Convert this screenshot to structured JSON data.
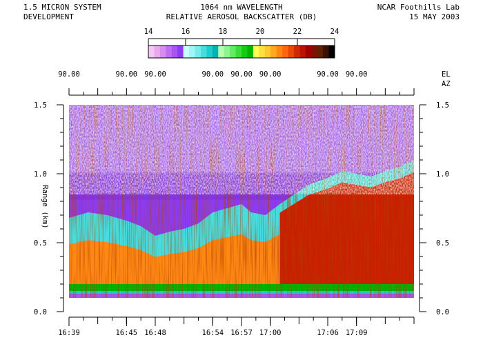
{
  "header": {
    "left_line1": "1.5 MICRON SYSTEM",
    "left_line2": "DEVELOPMENT",
    "center_line1": "1064 nm WAVELENGTH",
    "center_line2": "RELATIVE AEROSOL BACKSCATTER (DB)",
    "right_line1": "NCAR Foothills Lab",
    "right_line2": "15 MAY 2003"
  },
  "colors": {
    "bar": [
      "#f5c6f5",
      "#e8a8f0",
      "#d68cf0",
      "#bf6ef0",
      "#a855f0",
      "#8c3cf0",
      "#c8ffff",
      "#a0f5f5",
      "#78ebeb",
      "#48dcdc",
      "#20cccc",
      "#00b4b4",
      "#b4ffb4",
      "#8cf58c",
      "#64eb64",
      "#3cdc3c",
      "#14cc14",
      "#00b400",
      "#ffff50",
      "#ffe040",
      "#ffc830",
      "#ffa820",
      "#ff8814",
      "#ff6810",
      "#e84808",
      "#d02800",
      "#b81400",
      "#a00000",
      "#801000",
      "#602000",
      "#3a1000",
      "#000000"
    ]
  },
  "chart_data": {
    "type": "heatmap",
    "title": "RELATIVE AEROSOL BACKSCATTER (DB)",
    "ylabel": "Range (km)",
    "ylim": [
      0,
      1.5
    ],
    "y_ticks": [
      "0.0",
      "0.5",
      "1.0",
      "1.5"
    ],
    "colorbar": {
      "range": [
        14,
        24
      ],
      "ticks": [
        "14",
        "16",
        "18",
        "20",
        "22",
        "24"
      ]
    },
    "time_axis": {
      "range_minutes": [
        0,
        36
      ],
      "ticks": [
        {
          "label": "16:39",
          "minute": 0
        },
        {
          "label": "16:45",
          "minute": 6
        },
        {
          "label": "16:48",
          "minute": 9
        },
        {
          "label": "16:54",
          "minute": 15
        },
        {
          "label": "16:57",
          "minute": 18
        },
        {
          "label": "17:00",
          "minute": 21
        },
        {
          "label": "17:06",
          "minute": 27
        },
        {
          "label": "17:09",
          "minute": 30
        }
      ]
    },
    "elevation_axis": {
      "label_top": "EL",
      "label_bottom": "AZ",
      "ticks": [
        {
          "label": "90.00",
          "minute": 0
        },
        {
          "label": "90.00",
          "minute": 6
        },
        {
          "label": "90.00",
          "minute": 9
        },
        {
          "label": "90.00",
          "minute": 15
        },
        {
          "label": "90.00",
          "minute": 18
        },
        {
          "label": "90.00",
          "minute": 21
        },
        {
          "label": "90.00",
          "minute": 27
        },
        {
          "label": "90.00",
          "minute": 30
        }
      ]
    },
    "boundary_layer_top_km": [
      [
        0,
        0.68
      ],
      [
        2,
        0.72
      ],
      [
        4,
        0.7
      ],
      [
        6,
        0.66
      ],
      [
        7.5,
        0.62
      ],
      [
        9,
        0.55
      ],
      [
        10.5,
        0.58
      ],
      [
        12,
        0.6
      ],
      [
        13.5,
        0.64
      ],
      [
        15,
        0.72
      ],
      [
        16.5,
        0.75
      ],
      [
        18,
        0.78
      ],
      [
        19,
        0.72
      ],
      [
        20.5,
        0.7
      ],
      [
        22,
        0.78
      ],
      [
        23.5,
        0.85
      ],
      [
        25,
        0.92
      ],
      [
        27,
        0.97
      ],
      [
        28.5,
        1.02
      ],
      [
        30,
        1.0
      ],
      [
        31.5,
        0.98
      ],
      [
        33,
        1.02
      ],
      [
        34.5,
        1.05
      ],
      [
        36,
        1.1
      ]
    ]
  }
}
